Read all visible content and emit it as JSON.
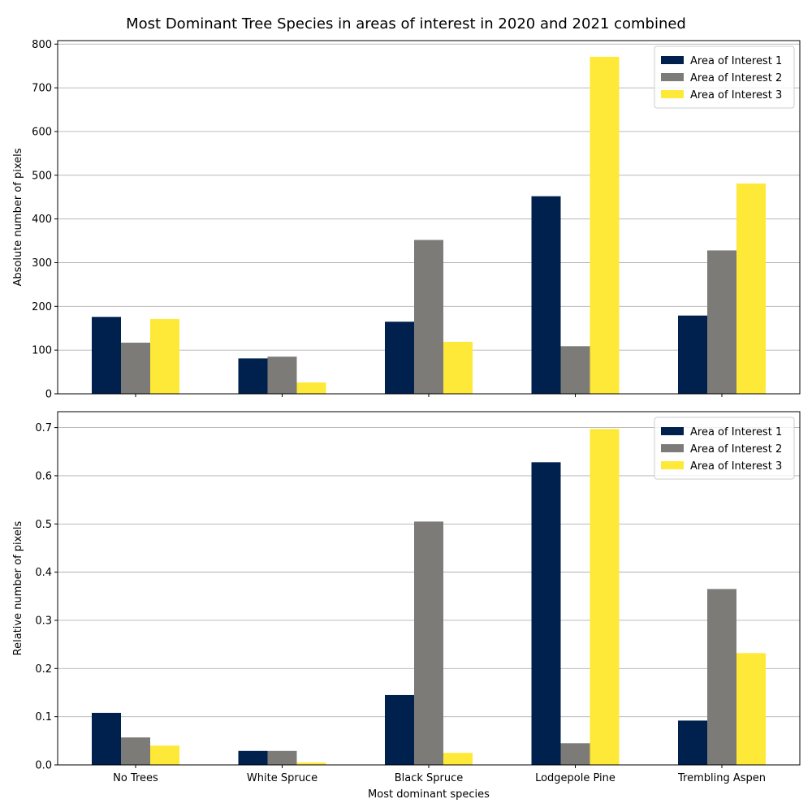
{
  "figure": {
    "title": "Most Dominant Tree Species in areas of interest in 2020 and 2021 combined"
  },
  "colors": {
    "series": [
      "#00204d",
      "#7c7b78",
      "#fee838"
    ],
    "grid": "#b0b0b0",
    "axis": "#000000",
    "background": "#ffffff"
  },
  "chart_data": [
    {
      "type": "bar",
      "title": "Most Dominant Tree Species in areas of interest in 2020 and 2021 combined",
      "xlabel": "",
      "ylabel": "Absolute number of pixels",
      "categories": [
        "No Trees",
        "White Spruce",
        "Black Spruce",
        "Lodgepole Pine",
        "Trembling Aspen"
      ],
      "series": [
        {
          "name": "Area of Interest 1",
          "values": [
            176,
            81,
            165,
            452,
            179
          ]
        },
        {
          "name": "Area of Interest 2",
          "values": [
            117,
            85,
            352,
            109,
            328
          ]
        },
        {
          "name": "Area of Interest 3",
          "values": [
            171,
            26,
            119,
            771,
            481
          ]
        }
      ],
      "ylim": [
        0,
        808
      ],
      "yticks": [
        0,
        100,
        200,
        300,
        400,
        500,
        600,
        700,
        800
      ],
      "ytick_labels": [
        "0",
        "100",
        "200",
        "300",
        "400",
        "500",
        "600",
        "700",
        "800"
      ],
      "grid": "y",
      "legend": "upper right",
      "show_x_tick_labels": false
    },
    {
      "type": "bar",
      "xlabel": "Most dominant species",
      "ylabel": "Relative number of pixels",
      "categories": [
        "No Trees",
        "White Spruce",
        "Black Spruce",
        "Lodgepole Pine",
        "Trembling Aspen"
      ],
      "series": [
        {
          "name": "Area of Interest 1",
          "values": [
            0.108,
            0.029,
            0.145,
            0.628,
            0.092
          ]
        },
        {
          "name": "Area of Interest 2",
          "values": [
            0.057,
            0.029,
            0.505,
            0.045,
            0.365
          ]
        },
        {
          "name": "Area of Interest 3",
          "values": [
            0.04,
            0.005,
            0.025,
            0.697,
            0.232
          ]
        }
      ],
      "ylim": [
        0,
        0.733
      ],
      "yticks": [
        0,
        0.1,
        0.2,
        0.3,
        0.4,
        0.5,
        0.6,
        0.7
      ],
      "ytick_labels": [
        "0.0",
        "0.1",
        "0.2",
        "0.3",
        "0.4",
        "0.5",
        "0.6",
        "0.7"
      ],
      "grid": "y",
      "legend": "upper right",
      "show_x_tick_labels": true
    }
  ]
}
